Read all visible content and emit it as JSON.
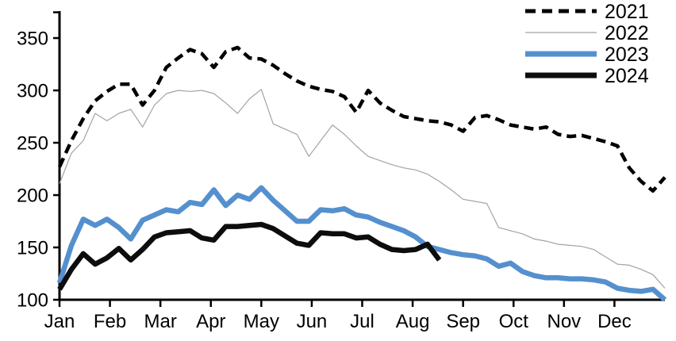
{
  "chart_data": {
    "type": "line",
    "title": "",
    "xlabel": "",
    "ylabel": "",
    "x_axis": {
      "tick_labels": [
        "Jan",
        "Feb",
        "Mar",
        "Apr",
        "May",
        "Jun",
        "Jul",
        "Aug",
        "Sep",
        "Oct",
        "Nov",
        "Dec"
      ],
      "note": "monthly ticks, weekly data points"
    },
    "y_axis": {
      "ticks": [
        100,
        150,
        200,
        250,
        300,
        350
      ],
      "range": [
        100,
        375
      ],
      "grid": false
    },
    "legend": {
      "position": "top-right",
      "entries": [
        "2021",
        "2022",
        "2023",
        "2024"
      ]
    },
    "weeks_per_year": 52,
    "series": [
      {
        "name": "2021",
        "style": "dashed",
        "color": "#000000",
        "width": 4.5,
        "values": [
          227,
          252,
          273,
          290,
          299,
          306,
          306,
          286,
          300,
          322,
          331,
          339,
          335,
          322,
          337,
          341,
          331,
          330,
          324,
          316,
          309,
          304,
          301,
          299,
          294,
          279,
          300,
          288,
          281,
          275,
          273,
          271,
          270,
          267,
          261,
          274,
          276,
          272,
          267,
          265,
          263,
          265,
          258,
          256,
          257,
          254,
          251,
          247,
          226,
          213,
          204,
          217
        ]
      },
      {
        "name": "2022",
        "style": "solid",
        "color": "#a3a3a3",
        "width": 1.2,
        "values": [
          211,
          240,
          252,
          278,
          271,
          278,
          282,
          265,
          286,
          297,
          300,
          299,
          300,
          297,
          288,
          278,
          292,
          301,
          268,
          263,
          258,
          237,
          252,
          267,
          258,
          247,
          237,
          233,
          229,
          226,
          224,
          220,
          213,
          205,
          196,
          194,
          192,
          169,
          166,
          163,
          158,
          156,
          153,
          152,
          151,
          148,
          141,
          134,
          133,
          129,
          124,
          111
        ]
      },
      {
        "name": "2023",
        "style": "solid",
        "color": "#5590ce",
        "width": 6.5,
        "values": [
          116,
          152,
          177,
          171,
          177,
          169,
          158,
          176,
          181,
          186,
          184,
          193,
          191,
          205,
          190,
          200,
          196,
          207,
          195,
          185,
          175,
          175,
          186,
          185,
          187,
          181,
          179,
          174,
          170,
          166,
          160,
          151,
          148,
          145,
          143,
          142,
          139,
          132,
          135,
          127,
          123,
          121,
          121,
          120,
          120,
          119,
          117,
          111,
          109,
          108,
          110,
          100
        ]
      },
      {
        "name": "2024",
        "style": "solid",
        "color": "#0d0d0d",
        "width": 6.5,
        "values": [
          110,
          129,
          144,
          134,
          140,
          149,
          138,
          148,
          160,
          164,
          165,
          166,
          159,
          157,
          170,
          170,
          171,
          172,
          168,
          161,
          154,
          152,
          164,
          163,
          163,
          159,
          160,
          153,
          148,
          147,
          148,
          153,
          138
        ]
      }
    ]
  }
}
